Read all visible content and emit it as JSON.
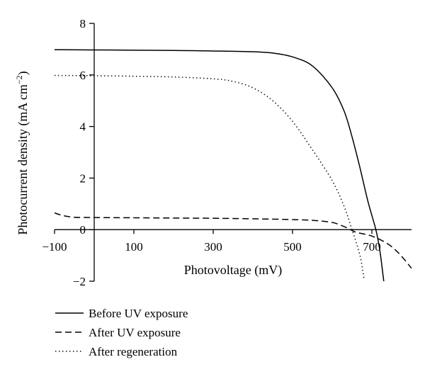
{
  "chart_data": {
    "type": "line",
    "xlabel": "Photovoltage (mV)",
    "ylabel": "Photocurrent density (mA cm",
    "ylabel_sup": "−2",
    "ylabel_close": ")",
    "xlim": [
      -100,
      800
    ],
    "ylim": [
      -2,
      8
    ],
    "x_ticks": [
      -100,
      100,
      300,
      500,
      700
    ],
    "x_tick_labels": [
      "−100",
      "100",
      "300",
      "500",
      "700"
    ],
    "y_ticks": [
      -2,
      0,
      2,
      4,
      6,
      8
    ],
    "y_tick_labels": [
      "−2",
      "0",
      "2",
      "4",
      "6",
      "8"
    ],
    "grid": false,
    "legend_position": "bottom-left",
    "series": [
      {
        "name": "Before UV exposure",
        "style": "solid",
        "color": "#000000",
        "points": [
          [
            -100,
            6.98
          ],
          [
            0,
            6.97
          ],
          [
            100,
            6.96
          ],
          [
            200,
            6.95
          ],
          [
            300,
            6.93
          ],
          [
            400,
            6.9
          ],
          [
            450,
            6.85
          ],
          [
            500,
            6.7
          ],
          [
            550,
            6.35
          ],
          [
            600,
            5.5
          ],
          [
            630,
            4.6
          ],
          [
            650,
            3.6
          ],
          [
            670,
            2.4
          ],
          [
            690,
            1.1
          ],
          [
            710,
            0.0
          ],
          [
            720,
            -0.8
          ],
          [
            730,
            -2.0
          ]
        ]
      },
      {
        "name": "After UV exposure",
        "style": "dashed",
        "color": "#000000",
        "points": [
          [
            -100,
            0.65
          ],
          [
            -80,
            0.55
          ],
          [
            -50,
            0.48
          ],
          [
            0,
            0.47
          ],
          [
            100,
            0.46
          ],
          [
            200,
            0.45
          ],
          [
            300,
            0.44
          ],
          [
            400,
            0.42
          ],
          [
            500,
            0.39
          ],
          [
            560,
            0.35
          ],
          [
            600,
            0.28
          ],
          [
            620,
            0.18
          ],
          [
            640,
            0.05
          ],
          [
            660,
            -0.1
          ],
          [
            700,
            -0.25
          ],
          [
            740,
            -0.55
          ],
          [
            770,
            -0.95
          ],
          [
            800,
            -1.5
          ]
        ]
      },
      {
        "name": "After regeneration",
        "style": "dotted",
        "color": "#000000",
        "points": [
          [
            -100,
            5.98
          ],
          [
            0,
            5.97
          ],
          [
            100,
            5.95
          ],
          [
            200,
            5.92
          ],
          [
            300,
            5.85
          ],
          [
            350,
            5.75
          ],
          [
            400,
            5.5
          ],
          [
            450,
            5.0
          ],
          [
            500,
            4.2
          ],
          [
            550,
            3.1
          ],
          [
            600,
            1.9
          ],
          [
            630,
            0.9
          ],
          [
            650,
            0.0
          ],
          [
            670,
            -1.0
          ],
          [
            680,
            -1.9
          ]
        ]
      }
    ]
  }
}
